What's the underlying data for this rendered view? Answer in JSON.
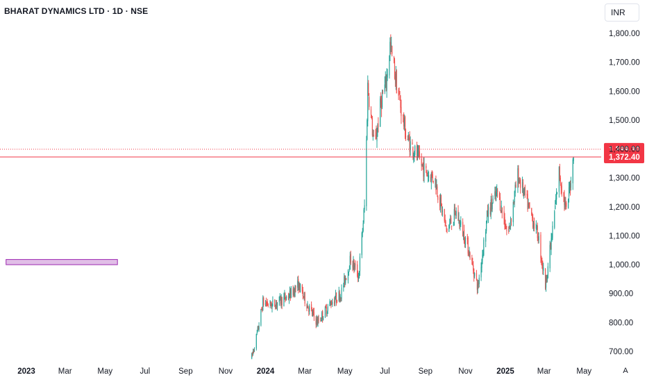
{
  "header": {
    "title": "BHARAT DYNAMICS LTD · 1D · NSE",
    "currency": "INR"
  },
  "auto_label": "A",
  "colors": {
    "up": "#26a69a",
    "down": "#ef5350",
    "price_line": "#f23645",
    "zone_fill": "#e1bee7",
    "zone_border": "#9c27b0"
  },
  "chart_data": {
    "type": "candlestick",
    "title": "BHARAT DYNAMICS LTD · 1D · NSE",
    "ylim": [
      665,
      1825
    ],
    "y_ticks": [
      700,
      800,
      900,
      1000,
      1100,
      1200,
      1300,
      1400,
      1500,
      1600,
      1700,
      1800
    ],
    "y_tick_labels": [
      "700.00",
      "800.00",
      "900.00",
      "1,000.00",
      "1,100.00",
      "1,200.00",
      "1,300.00",
      "1,400.00",
      "1,500.00",
      "1,600.00",
      "1,700.00",
      "1,800.00"
    ],
    "x_range": [
      "2022-12-01",
      "2025-05-25"
    ],
    "x_ticks": [
      {
        "label": "2023",
        "date": "2023-01-01",
        "bold": true
      },
      {
        "label": "Mar",
        "date": "2023-03-01"
      },
      {
        "label": "May",
        "date": "2023-05-01"
      },
      {
        "label": "Jul",
        "date": "2023-07-01"
      },
      {
        "label": "Sep",
        "date": "2023-09-01"
      },
      {
        "label": "Nov",
        "date": "2023-11-01"
      },
      {
        "label": "2024",
        "date": "2024-01-01",
        "bold": true
      },
      {
        "label": "Mar",
        "date": "2024-03-01"
      },
      {
        "label": "May",
        "date": "2024-05-01"
      },
      {
        "label": "Jul",
        "date": "2024-07-01"
      },
      {
        "label": "Sep",
        "date": "2024-09-01"
      },
      {
        "label": "Nov",
        "date": "2024-11-01"
      },
      {
        "label": "2025",
        "date": "2025-01-01",
        "bold": true
      },
      {
        "label": "Mar",
        "date": "2025-03-01"
      },
      {
        "label": "May",
        "date": "2025-05-01"
      }
    ],
    "price_levels": [
      {
        "value": 1399.3,
        "label": "1,399.30",
        "style": "dotted"
      },
      {
        "value": 1372.4,
        "label": "1,372.40",
        "style": "solid"
      }
    ],
    "zone": {
      "start": "2022-12-01",
      "end": "2023-05-20",
      "low": 1000,
      "high": 1018
    },
    "anchors": [
      {
        "date": "2023-12-11",
        "price": 680
      },
      {
        "date": "2023-12-20",
        "price": 770
      },
      {
        "date": "2023-12-28",
        "price": 870
      },
      {
        "date": "2024-01-10",
        "price": 860
      },
      {
        "date": "2024-02-05",
        "price": 890
      },
      {
        "date": "2024-02-20",
        "price": 930
      },
      {
        "date": "2024-03-05",
        "price": 860
      },
      {
        "date": "2024-03-20",
        "price": 800
      },
      {
        "date": "2024-04-10",
        "price": 870
      },
      {
        "date": "2024-04-25",
        "price": 900
      },
      {
        "date": "2024-05-10",
        "price": 1020
      },
      {
        "date": "2024-05-22",
        "price": 960
      },
      {
        "date": "2024-06-01",
        "price": 1230
      },
      {
        "date": "2024-06-05",
        "price": 1620
      },
      {
        "date": "2024-06-15",
        "price": 1400
      },
      {
        "date": "2024-06-25",
        "price": 1560
      },
      {
        "date": "2024-07-03",
        "price": 1630
      },
      {
        "date": "2024-07-09",
        "price": 1760
      },
      {
        "date": "2024-07-20",
        "price": 1610
      },
      {
        "date": "2024-08-03",
        "price": 1440
      },
      {
        "date": "2024-08-18",
        "price": 1380
      },
      {
        "date": "2024-09-01",
        "price": 1320
      },
      {
        "date": "2024-09-15",
        "price": 1300
      },
      {
        "date": "2024-10-03",
        "price": 1120
      },
      {
        "date": "2024-10-18",
        "price": 1180
      },
      {
        "date": "2024-11-05",
        "price": 1060
      },
      {
        "date": "2024-11-20",
        "price": 920
      },
      {
        "date": "2024-12-05",
        "price": 1180
      },
      {
        "date": "2024-12-20",
        "price": 1250
      },
      {
        "date": "2025-01-05",
        "price": 1100
      },
      {
        "date": "2025-01-20",
        "price": 1310
      },
      {
        "date": "2025-02-05",
        "price": 1200
      },
      {
        "date": "2025-02-20",
        "price": 1100
      },
      {
        "date": "2025-03-03",
        "price": 930
      },
      {
        "date": "2025-03-12",
        "price": 1080
      },
      {
        "date": "2025-03-24",
        "price": 1320
      },
      {
        "date": "2025-04-04",
        "price": 1180
      },
      {
        "date": "2025-04-11",
        "price": 1300
      },
      {
        "date": "2025-04-15",
        "price": 1372.4
      }
    ]
  }
}
